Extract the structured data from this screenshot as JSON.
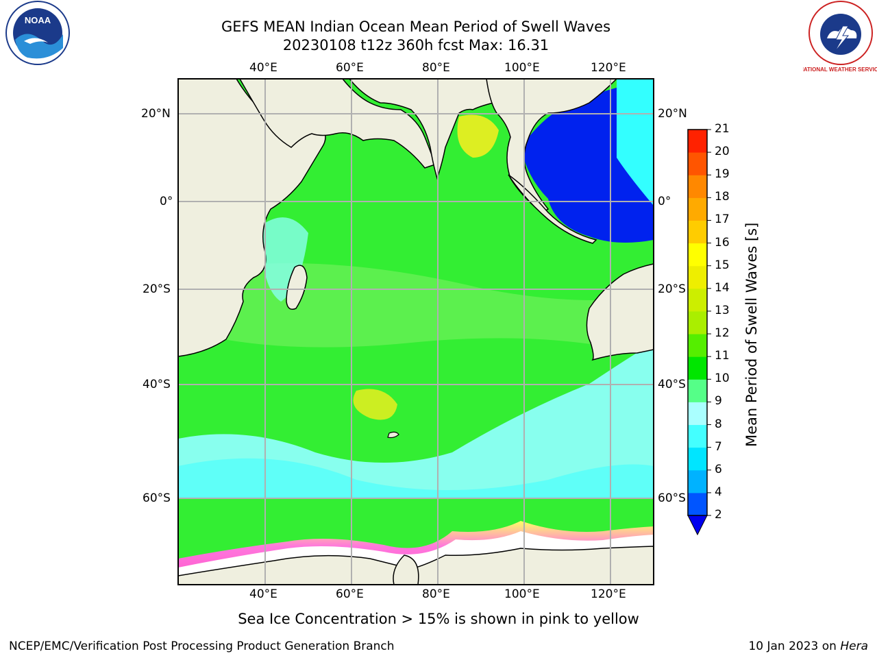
{
  "title_line1": "GEFS MEAN Indian Ocean Mean Period of Swell Waves",
  "title_line2": "20230108 t12z 360h fcst   Max: 16.31",
  "lon_ticks": [
    "40°E",
    "60°E",
    "80°E",
    "100°E",
    "120°E"
  ],
  "lat_ticks": [
    "20°N",
    "0°",
    "20°S",
    "40°S",
    "60°S"
  ],
  "colorbar": {
    "label": "Mean Period of Swell Waves [s]",
    "levels": [
      "2",
      "4",
      "6",
      "7",
      "8",
      "9",
      "10",
      "11",
      "12",
      "13",
      "14",
      "15",
      "16",
      "17",
      "18",
      "19",
      "20",
      "21"
    ],
    "colors": [
      "#0055ff",
      "#00b2ff",
      "#00e5ff",
      "#44ffff",
      "#aaffff",
      "#55ff88",
      "#00e600",
      "#55ee00",
      "#aaee00",
      "#ccee00",
      "#eeee00",
      "#ffff00",
      "#ffcc00",
      "#ffaa00",
      "#ff8800",
      "#ff5500",
      "#ff2200",
      "#ff0000"
    ],
    "under_color": "#0000ee"
  },
  "note": "Sea Ice Concentration > 15% is shown in pink to yellow",
  "footer_left": "NCEP/EMC/Verification Post Processing Product Generation Branch",
  "footer_right_date": "10 Jan 2023 on ",
  "footer_right_host": "Hera",
  "logos": {
    "left_text": "NOAA",
    "right_text": "NATIONAL WEATHER SERVICE"
  },
  "colors": {
    "land": "#efefdf",
    "ocean_main": "#33ee33",
    "ocean_cool": "#88ffee",
    "ocean_deep": "#0033ee",
    "sea_ice": "#ffffff",
    "sea_ice_edge": "#ff55cc"
  }
}
